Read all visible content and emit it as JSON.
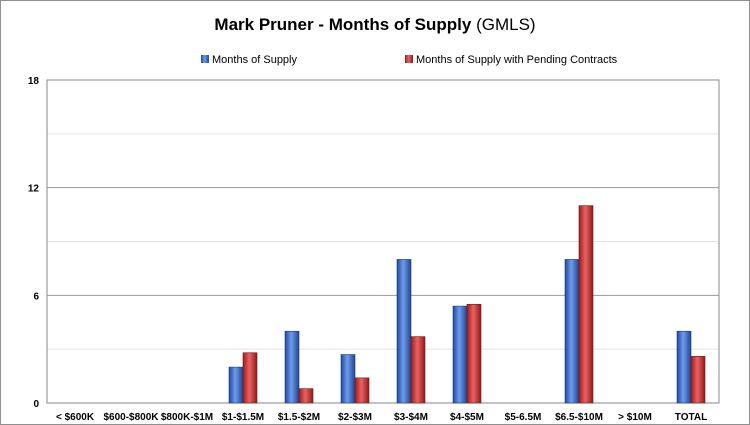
{
  "chart_data": {
    "type": "bar",
    "title": "Mark Pruner - Months of Supply",
    "subtitle": "(GMLS)",
    "xlabel": "",
    "ylabel": "",
    "ylim": [
      0,
      18
    ],
    "yticks": [
      0,
      6,
      12,
      18
    ],
    "grid": true,
    "legend_position": "top",
    "categories": [
      "< $600K",
      "$600-$800K",
      "$800K-$1M",
      "$1-$1.5M",
      "$1.5-$2M",
      "$2-$3M",
      "$3-$4M",
      "$4-$5M",
      "$5-6.5M",
      "$6.5-$10M",
      "> $10M",
      "TOTAL"
    ],
    "series": [
      {
        "name": "Months of Supply",
        "color": "#2e62c4",
        "values": [
          0,
          0,
          0,
          2.0,
          4.0,
          2.7,
          8.0,
          5.4,
          0,
          8.0,
          0,
          4.0
        ]
      },
      {
        "name": "Months of Supply with Pending Contracts",
        "color": "#c62a2a",
        "values": [
          0,
          0,
          0,
          2.8,
          0.8,
          1.4,
          3.7,
          5.5,
          0,
          11.0,
          0,
          2.6
        ]
      }
    ]
  }
}
